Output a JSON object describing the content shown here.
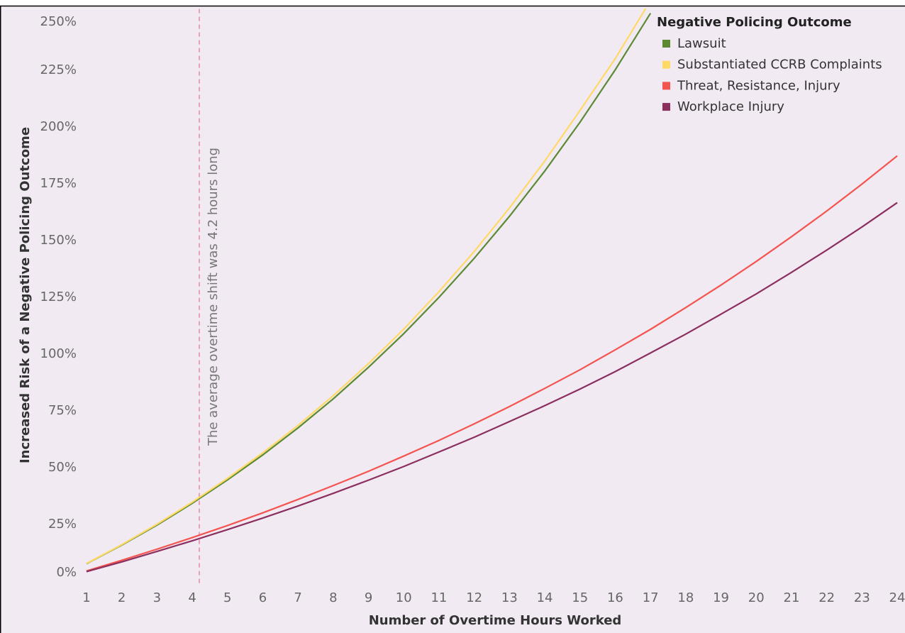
{
  "chart_data": {
    "type": "line",
    "x_label": "Number of Overtime Hours Worked",
    "y_label": "Increased Risk of a Negative Policing Outcome",
    "legend_title": "Negative Policing Outcome",
    "legend_position": "top-right",
    "x": [
      1,
      2,
      3,
      4,
      5,
      6,
      7,
      8,
      9,
      10,
      11,
      12,
      13,
      14,
      15,
      16,
      17,
      18,
      19,
      20,
      21,
      22,
      23,
      24
    ],
    "series": [
      {
        "name": "Lawsuit",
        "color": "#5b8a33",
        "values": [
          7.7,
          15.9,
          24.7,
          34.3,
          44.6,
          55.6,
          67.5,
          80.3,
          94.2,
          109.0,
          125.0,
          142.2,
          160.7,
          180.6,
          202.1,
          225.2,
          250.1,
          null,
          null,
          null,
          null,
          null,
          null,
          null
        ]
      },
      {
        "name": "Substantiated CCRB Complaints",
        "color": "#ffd966",
        "values": [
          7.8,
          16.1,
          25.1,
          34.8,
          45.3,
          56.5,
          68.6,
          81.7,
          95.8,
          111.0,
          127.5,
          145.2,
          164.4,
          185.0,
          207.3,
          230.1,
          255.7,
          null,
          null,
          null,
          null,
          null,
          null,
          null
        ]
      },
      {
        "name": "Threat, Resistance, Injury",
        "color": "#f4544f",
        "values": [
          4.5,
          9.2,
          14.1,
          19.2,
          24.5,
          30.1,
          36.0,
          42.1,
          48.4,
          55.1,
          62.0,
          69.3,
          76.9,
          84.9,
          93.1,
          101.9,
          110.9,
          120.5,
          130.4,
          140.8,
          151.7,
          163.0,
          174.9,
          187.3
        ]
      },
      {
        "name": "Workplace Injury",
        "color": "#8b2f5f",
        "values": [
          4.2,
          8.5,
          13.1,
          17.8,
          22.7,
          27.8,
          33.1,
          38.7,
          44.5,
          50.5,
          56.9,
          63.4,
          70.3,
          77.3,
          84.6,
          92.3,
          100.5,
          108.8,
          117.6,
          126.5,
          136.0,
          145.8,
          156.0,
          166.7
        ]
      }
    ],
    "reference_line": {
      "value": 4.2,
      "label": "The average overtime shift was 4.2 hours long",
      "color": "#e8a0b4"
    },
    "xlim": [
      0.8,
      24.2
    ],
    "ylim": [
      -2,
      252
    ],
    "xticks": [
      1,
      2,
      3,
      4,
      5,
      6,
      7,
      8,
      9,
      10,
      11,
      12,
      13,
      14,
      15,
      16,
      17,
      18,
      19,
      20,
      21,
      22,
      23,
      24
    ],
    "yticks": [
      {
        "value": 0,
        "label": "0%"
      },
      {
        "value": 25,
        "label": "25%"
      },
      {
        "value": 50,
        "label": "50%"
      },
      {
        "value": 75,
        "label": "75%"
      },
      {
        "value": 100,
        "label": "100%"
      },
      {
        "value": 125,
        "label": "125%"
      },
      {
        "value": 150,
        "label": "150%"
      },
      {
        "value": 175,
        "label": "175%"
      },
      {
        "value": 200,
        "label": "200%"
      },
      {
        "value": 225,
        "label": "225%"
      },
      {
        "value": 250,
        "label": "250%"
      }
    ],
    "grid": false
  }
}
